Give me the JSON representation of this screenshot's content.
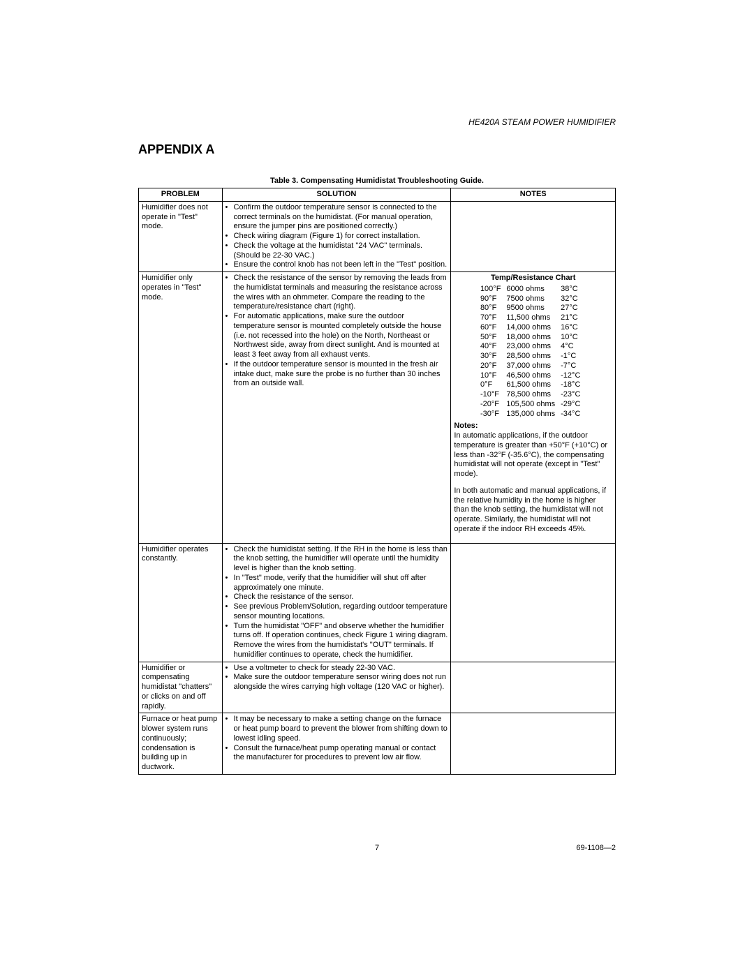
{
  "header": {
    "product": "HE420A STEAM POWER HUMIDIFIER"
  },
  "appendix_title": "APPENDIX A",
  "table": {
    "caption": "Table 3. Compensating Humidistat Troubleshooting Guide.",
    "headers": {
      "problem": "PROBLEM",
      "solution": "SOLUTION",
      "notes": "NOTES"
    },
    "rows": [
      {
        "problem": "Humidifier does not operate in \"Test\" mode.",
        "solutions": [
          "Confirm the outdoor temperature sensor is connected to the correct terminals on the humidistat. (For manual operation, ensure the jumper pins are positioned correctly.)",
          "Check wiring diagram (Figure 1) for correct installation.",
          "Check the voltage at the humidistat \"24 VAC\" terminals. (Should be 22-30 VAC.)",
          "Ensure the control knob has not been left in the \"Test\" position."
        ],
        "notes_type": "blank"
      },
      {
        "problem": "Humidifier only operates in \"Test\" mode.",
        "solutions": [
          "Check the resistance of the sensor by removing the leads from the humidistat terminals and measuring the resistance across the wires with an ohmmeter. Compare the reading to the temperature/resistance chart (right).",
          "For automatic applications, make sure the outdoor temperature sensor is mounted completely outside the house (i.e. not recessed into the hole) on the North, Northeast or Northwest side, away from direct sunlight. And is mounted at least 3 feet away from all exhaust vents.",
          "If the outdoor temperature sensor is mounted in the fresh air intake duct, make sure the probe is no further than 30 inches from an outside wall."
        ],
        "notes_type": "chart",
        "chart": {
          "title": "Temp/Resistance Chart",
          "rows": [
            [
              "100°F",
              "6000 ohms",
              "38°C"
            ],
            [
              "90°F",
              "7500 ohms",
              "32°C"
            ],
            [
              "80°F",
              "9500 ohms",
              "27°C"
            ],
            [
              "70°F",
              "11,500 ohms",
              "21°C"
            ],
            [
              "60°F",
              "14,000 ohms",
              "16°C"
            ],
            [
              "50°F",
              "18,000 ohms",
              "10°C"
            ],
            [
              "40°F",
              "23,000 ohms",
              "4°C"
            ],
            [
              "30°F",
              "28,500 ohms",
              "-1°C"
            ],
            [
              "20°F",
              "37,000 ohms",
              "-7°C"
            ],
            [
              "10°F",
              "46,500 ohms",
              "-12°C"
            ],
            [
              "0°F",
              "61,500 ohms",
              "-18°C"
            ],
            [
              "-10°F",
              "78,500 ohms",
              "-23°C"
            ],
            [
              "-20°F",
              "105,500 ohms",
              "-29°C"
            ],
            [
              "-30°F",
              "135,000 ohms",
              "-34°C"
            ]
          ],
          "notes_label": "Notes:",
          "notes_paras": [
            "In automatic applications, if the outdoor temperature is greater than +50°F (+10°C) or less than -32°F (-35.6°C), the compensating humidistat will not operate (except in \"Test\" mode).",
            "In both automatic and manual applications, if the relative humidity in the home is higher than the knob setting, the humidistat will not operate. Similarly, the humidistat will not operate if the indoor RH exceeds 45%."
          ]
        }
      },
      {
        "problem": "Humidifier operates constantly.",
        "solutions": [
          "Check the humidistat setting. If the RH in the home is less than the knob setting, the humidifier will operate until the humidity level is higher than the knob setting.",
          "In \"Test\" mode, verify that the humidifier will shut off after approximately one minute.",
          "Check the resistance of the sensor.",
          "See previous Problem/Solution, regarding outdoor temperature sensor mounting locations.",
          "Turn the humidistat \"OFF\" and observe whether the humidifier turns off. If operation continues, check Figure 1 wiring diagram. Remove the wires from the humidistat's \"OUT\" terminals. If humidifier continues to operate, check the humidifier."
        ],
        "notes_type": "blank"
      },
      {
        "problem": "Humidifier or compensating humidistat \"chatters\" or clicks on and off rapidly.",
        "solutions": [
          "Use a voltmeter to check for steady 22-30 VAC.",
          "Make sure the outdoor temperature sensor wiring does not run alongside the wires carrying high voltage (120 VAC or higher)."
        ],
        "notes_type": "blank"
      },
      {
        "problem": "Furnace or heat pump blower system runs continuously; condensation is building up in ductwork.",
        "solutions": [
          "It may be necessary to make a setting change on the furnace or heat pump board to prevent the blower from shifting down to lowest idling speed.",
          "Consult the furnace/heat pump operating manual or contact the manufacturer for procedures to prevent low air flow."
        ],
        "notes_type": "blank"
      }
    ]
  },
  "footer": {
    "page": "7",
    "docnum": "69-1108—2"
  }
}
